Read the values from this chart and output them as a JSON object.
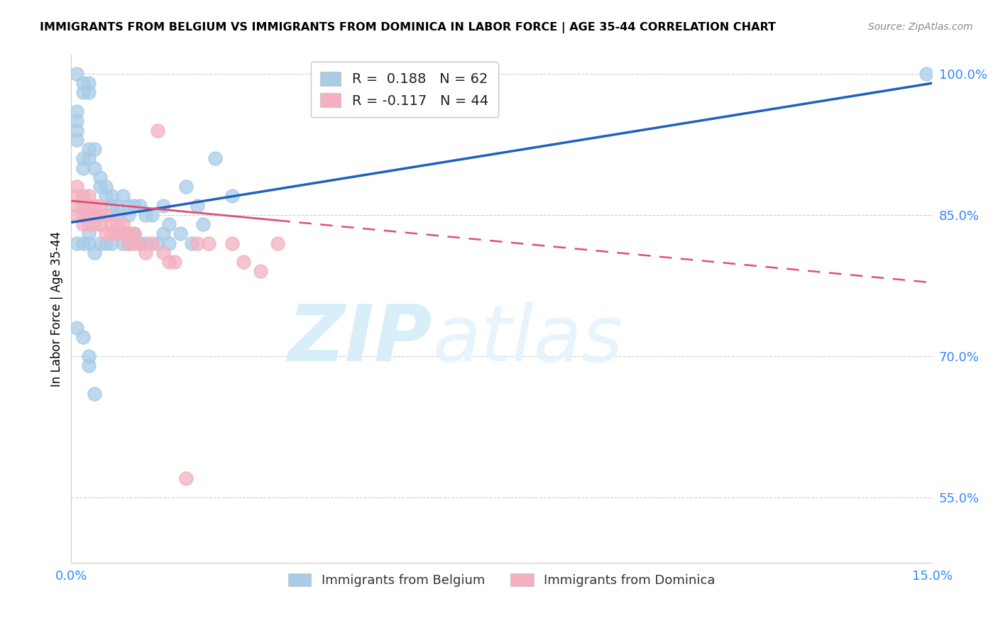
{
  "title": "IMMIGRANTS FROM BELGIUM VS IMMIGRANTS FROM DOMINICA IN LABOR FORCE | AGE 35-44 CORRELATION CHART",
  "source": "Source: ZipAtlas.com",
  "ylabel": "In Labor Force | Age 35-44",
  "xlim": [
    0.0,
    0.15
  ],
  "ylim": [
    0.48,
    1.02
  ],
  "yticks": [
    0.55,
    0.7,
    0.85,
    1.0
  ],
  "ytick_labels": [
    "55.0%",
    "70.0%",
    "85.0%",
    "100.0%"
  ],
  "belgium_R": 0.188,
  "belgium_N": 62,
  "dominica_R": -0.117,
  "dominica_N": 44,
  "belgium_color": "#a8cce8",
  "dominica_color": "#f4b0c0",
  "belgium_line_color": "#2060c0",
  "dominica_line_color": "#e05070",
  "legend_label_belgium": "Immigrants from Belgium",
  "legend_label_dominica": "Immigrants from Dominica",
  "belgium_scatter_x": [
    0.001,
    0.002,
    0.002,
    0.003,
    0.003,
    0.001,
    0.001,
    0.001,
    0.001,
    0.002,
    0.002,
    0.003,
    0.003,
    0.004,
    0.004,
    0.005,
    0.005,
    0.006,
    0.006,
    0.007,
    0.007,
    0.008,
    0.008,
    0.009,
    0.01,
    0.01,
    0.011,
    0.012,
    0.013,
    0.014,
    0.016,
    0.017,
    0.02,
    0.022,
    0.025,
    0.028,
    0.001,
    0.002,
    0.003,
    0.003,
    0.004,
    0.005,
    0.006,
    0.007,
    0.008,
    0.009,
    0.01,
    0.011,
    0.012,
    0.013,
    0.015,
    0.016,
    0.017,
    0.019,
    0.021,
    0.023,
    0.001,
    0.002,
    0.003,
    0.003,
    0.004,
    0.149
  ],
  "belgium_scatter_y": [
    1.0,
    0.99,
    0.98,
    0.99,
    0.98,
    0.96,
    0.95,
    0.94,
    0.93,
    0.91,
    0.9,
    0.92,
    0.91,
    0.92,
    0.9,
    0.89,
    0.88,
    0.88,
    0.87,
    0.87,
    0.86,
    0.86,
    0.85,
    0.87,
    0.86,
    0.85,
    0.86,
    0.86,
    0.85,
    0.85,
    0.86,
    0.84,
    0.88,
    0.86,
    0.91,
    0.87,
    0.82,
    0.82,
    0.83,
    0.82,
    0.81,
    0.82,
    0.82,
    0.82,
    0.83,
    0.82,
    0.82,
    0.83,
    0.82,
    0.82,
    0.82,
    0.83,
    0.82,
    0.83,
    0.82,
    0.84,
    0.73,
    0.72,
    0.7,
    0.69,
    0.66,
    1.0
  ],
  "dominica_scatter_x": [
    0.001,
    0.001,
    0.001,
    0.001,
    0.002,
    0.002,
    0.002,
    0.002,
    0.003,
    0.003,
    0.003,
    0.003,
    0.004,
    0.004,
    0.004,
    0.005,
    0.005,
    0.005,
    0.006,
    0.006,
    0.007,
    0.007,
    0.008,
    0.008,
    0.009,
    0.009,
    0.01,
    0.01,
    0.011,
    0.011,
    0.012,
    0.013,
    0.014,
    0.015,
    0.016,
    0.017,
    0.018,
    0.02,
    0.022,
    0.024,
    0.028,
    0.03,
    0.033,
    0.036
  ],
  "dominica_scatter_y": [
    0.88,
    0.87,
    0.86,
    0.85,
    0.87,
    0.86,
    0.85,
    0.84,
    0.87,
    0.86,
    0.85,
    0.84,
    0.86,
    0.85,
    0.84,
    0.86,
    0.85,
    0.84,
    0.85,
    0.83,
    0.84,
    0.83,
    0.84,
    0.83,
    0.84,
    0.83,
    0.83,
    0.82,
    0.83,
    0.82,
    0.82,
    0.81,
    0.82,
    0.94,
    0.81,
    0.8,
    0.8,
    0.57,
    0.82,
    0.82,
    0.82,
    0.8,
    0.79,
    0.82
  ],
  "watermark_zip": "ZIP",
  "watermark_atlas": "atlas",
  "watermark_color": "#d8eef8"
}
